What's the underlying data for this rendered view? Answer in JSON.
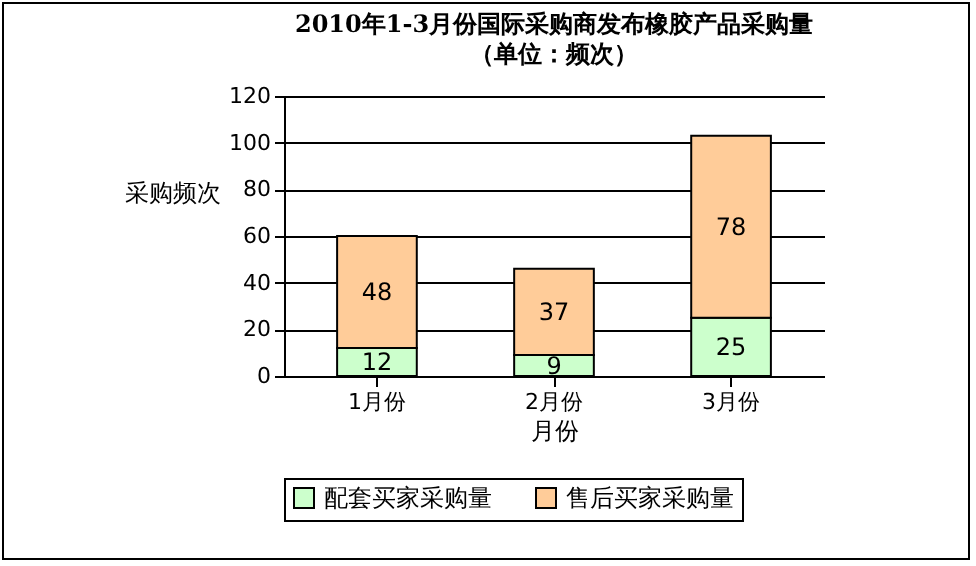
{
  "chart_data": {
    "type": "bar",
    "title": "2010年1-3月份国际采购商发布橡胶产品采购量",
    "subtitle": "（单位：频次）",
    "xlabel": "月份",
    "ylabel": "采购频次",
    "categories": [
      "1月份",
      "2月份",
      "3月份"
    ],
    "stacked": true,
    "ylim": [
      0,
      120
    ],
    "yticks": [
      0,
      20,
      40,
      60,
      80,
      100,
      120
    ],
    "grid": "y",
    "legend": "bottom",
    "data_labels": true,
    "series": [
      {
        "name": "配套买家采购量",
        "color": "#ccffcc",
        "values": [
          12,
          9,
          25
        ]
      },
      {
        "name": "售后买家采购量",
        "color": "#ffcc99",
        "values": [
          48,
          37,
          78
        ]
      }
    ]
  }
}
